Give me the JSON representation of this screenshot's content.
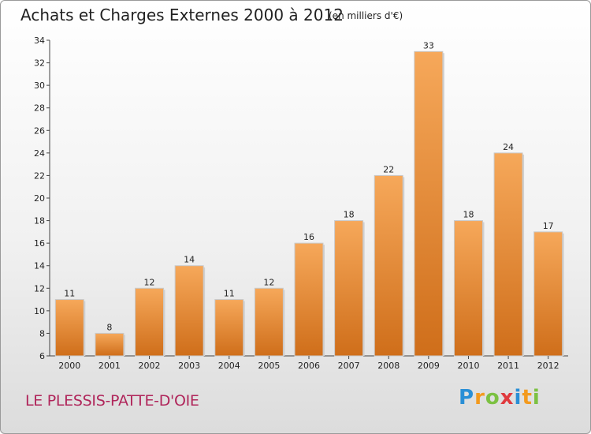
{
  "header": {
    "title": "Achats et Charges Externes 2000 à 2012",
    "subtitle": "(en milliers d'€)"
  },
  "footer": {
    "commune": "LE PLESSIS-PATTE-D'OIE",
    "logo": "Proxiti"
  },
  "colors": {
    "bar_light": "#f6a85a",
    "bar_dark": "#cf6e1a",
    "commune_text": "#b0265b"
  },
  "chart_data": {
    "type": "bar",
    "title": "Achats et Charges Externes 2000 à 2012",
    "subtitle": "(en milliers d'€)",
    "categories": [
      "2000",
      "2001",
      "2002",
      "2003",
      "2004",
      "2005",
      "2006",
      "2007",
      "2008",
      "2009",
      "2010",
      "2011",
      "2012"
    ],
    "values": [
      11,
      8,
      12,
      14,
      11,
      12,
      16,
      18,
      22,
      33,
      18,
      24,
      17
    ],
    "ylim": [
      6,
      34
    ],
    "yticks": [
      6,
      8,
      10,
      12,
      14,
      16,
      18,
      20,
      22,
      24,
      26,
      28,
      30,
      32,
      34
    ],
    "grid": false,
    "xlabel": "",
    "ylabel": ""
  }
}
